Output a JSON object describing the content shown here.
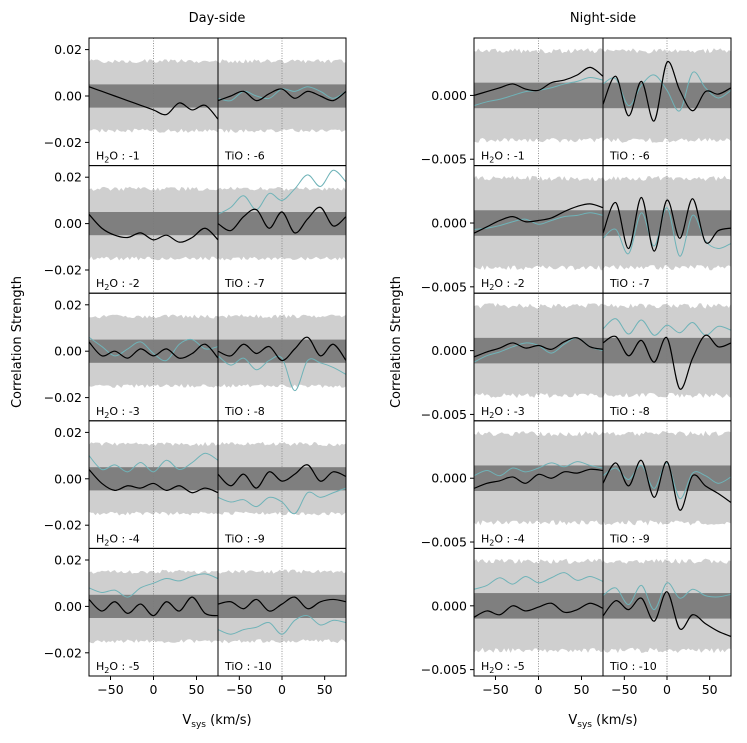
{
  "titles": {
    "left": "Day-side",
    "right": "Night-side"
  },
  "ylabel": "Correlation Strength",
  "xlabel": {
    "main": "V",
    "sub": "sys",
    "unit": " (km/s)"
  },
  "xticks": [
    "−50",
    "0",
    "50"
  ],
  "chart_data": {
    "type": "line",
    "xlim": [
      -75,
      75
    ],
    "panels": {
      "day": {
        "ylim": [
          -0.03,
          0.025
        ],
        "yticks": [
          {
            "v": 0.02,
            "label": "0.02"
          },
          {
            "v": 0.0,
            "label": "0.00"
          },
          {
            "v": -0.02,
            "label": "−0.02"
          }
        ],
        "inner_band": 0.005,
        "outer_band": 0.015
      },
      "night": {
        "ylim": [
          -0.0055,
          0.0045
        ],
        "yticks": [
          {
            "v": 0.0,
            "label": "0.000"
          },
          {
            "v": -0.005,
            "label": "−0.005"
          }
        ],
        "inner_band": 0.001,
        "outer_band": 0.0035
      }
    },
    "day_rows": [
      {
        "h2o": {
          "label": "-1",
          "black": [
            0.004,
            0.002,
            0.0,
            -0.002,
            -0.004,
            -0.006,
            -0.008,
            -0.003,
            -0.006,
            -0.004,
            -0.01
          ]
        },
        "tio": {
          "label": "-6",
          "black": [
            -0.002,
            0.0,
            0.002,
            -0.002,
            0.001,
            0.003,
            -0.001,
            0.002,
            0.0,
            -0.002,
            0.002
          ],
          "teal": [
            -0.001,
            -0.002,
            0.002,
            0.0,
            -0.001,
            0.003,
            0.002,
            0.004,
            0.002,
            -0.001,
            0.002
          ]
        }
      },
      {
        "h2o": {
          "label": "-2",
          "black": [
            0.004,
            -0.002,
            -0.005,
            -0.006,
            -0.004,
            -0.007,
            -0.005,
            -0.008,
            -0.006,
            -0.002,
            -0.007
          ]
        },
        "tio": {
          "label": "-7",
          "black": [
            0.0,
            -0.003,
            0.003,
            0.006,
            -0.002,
            0.005,
            -0.004,
            0.002,
            0.007,
            -0.001,
            0.003
          ],
          "teal": [
            0.004,
            0.007,
            0.012,
            0.006,
            0.013,
            0.01,
            0.015,
            0.021,
            0.016,
            0.023,
            0.018
          ]
        }
      },
      {
        "h2o": {
          "label": "-3",
          "black": [
            0.004,
            -0.002,
            0.0,
            -0.003,
            0.001,
            -0.002,
            0.001,
            -0.003,
            -0.001,
            0.003,
            -0.003
          ],
          "teal": [
            0.006,
            0.002,
            -0.002,
            0.001,
            0.004,
            -0.001,
            -0.004,
            0.003,
            0.005,
            0.001,
            0.002
          ]
        },
        "tio": {
          "label": "-8",
          "black": [
            0.0,
            -0.002,
            0.003,
            -0.001,
            0.002,
            -0.004,
            0.001,
            0.006,
            -0.002,
            0.003,
            -0.004
          ],
          "teal": [
            -0.002,
            -0.006,
            -0.003,
            -0.008,
            -0.004,
            -0.003,
            -0.017,
            -0.004,
            -0.005,
            -0.007,
            -0.01
          ]
        }
      },
      {
        "h2o": {
          "label": "-4",
          "black": [
            0.004,
            -0.002,
            -0.005,
            -0.003,
            -0.004,
            -0.002,
            -0.005,
            -0.003,
            -0.006,
            -0.004,
            -0.006
          ],
          "teal": [
            0.01,
            0.004,
            0.006,
            0.003,
            0.007,
            0.003,
            0.008,
            0.004,
            0.007,
            0.011,
            0.008
          ]
        },
        "tio": {
          "label": "-9",
          "black": [
            0.002,
            -0.003,
            0.002,
            -0.004,
            0.003,
            -0.001,
            0.002,
            0.006,
            -0.001,
            0.003,
            0.001
          ],
          "teal": [
            -0.008,
            -0.01,
            -0.009,
            -0.012,
            -0.008,
            -0.01,
            -0.015,
            -0.006,
            -0.008,
            -0.006,
            -0.004
          ]
        }
      },
      {
        "h2o": {
          "label": "-5",
          "black": [
            0.003,
            -0.002,
            0.002,
            -0.003,
            0.001,
            -0.004,
            0.002,
            -0.002,
            0.004,
            -0.003,
            -0.004
          ],
          "teal": [
            0.008,
            0.006,
            0.007,
            0.004,
            0.008,
            0.01,
            0.012,
            0.011,
            0.013,
            0.014,
            0.012
          ]
        },
        "tio": {
          "label": "-10",
          "black": [
            0.001,
            0.002,
            -0.001,
            0.003,
            -0.002,
            0.001,
            0.004,
            -0.001,
            0.002,
            0.003,
            0.002
          ],
          "teal": [
            -0.01,
            -0.012,
            -0.01,
            -0.009,
            -0.007,
            -0.012,
            -0.006,
            -0.004,
            -0.008,
            -0.006,
            -0.007
          ]
        }
      }
    ],
    "night_rows": [
      {
        "h2o": {
          "label": "-1",
          "black": [
            0.0,
            0.0003,
            0.0006,
            0.0009,
            0.0005,
            0.0004,
            0.001,
            0.0012,
            0.0016,
            0.0022,
            0.0015
          ],
          "teal": [
            -0.0008,
            -0.0005,
            -0.0003,
            0.0,
            0.0003,
            0.0004,
            0.0006,
            0.0009,
            0.0011,
            0.0014,
            0.0012
          ]
        },
        "tio": {
          "label": "-6",
          "black": [
            -0.0007,
            0.0015,
            -0.0016,
            0.0011,
            -0.002,
            0.0026,
            0.0004,
            -0.0012,
            0.0003,
            0.0001,
            0.0006
          ],
          "teal": [
            0.0009,
            0.0013,
            -0.0008,
            0.0008,
            0.0016,
            0.0004,
            -0.0012,
            0.0018,
            0.0006,
            -0.0002,
            0.0004
          ]
        }
      },
      {
        "h2o": {
          "label": "-2",
          "black": [
            -0.0008,
            -0.0003,
            0.0002,
            0.0005,
            0.0001,
            0.0002,
            0.0004,
            0.0009,
            0.0013,
            0.0015,
            0.0012
          ],
          "teal": [
            -0.0005,
            -0.0004,
            -0.0002,
            0.0001,
            0.0003,
            -0.0001,
            0.0002,
            0.0005,
            0.0006,
            0.0008,
            0.0006
          ]
        },
        "tio": {
          "label": "-7",
          "black": [
            -0.0008,
            0.0016,
            -0.002,
            0.002,
            -0.0022,
            0.0018,
            -0.0012,
            0.0019,
            -0.0015,
            -0.0006,
            -0.0004
          ],
          "teal": [
            -0.0012,
            -0.0005,
            -0.0024,
            0.0008,
            -0.0018,
            0.0012,
            -0.0026,
            0.0006,
            -0.0014,
            -0.002,
            -0.0016
          ]
        }
      },
      {
        "h2o": {
          "label": "-3",
          "black": [
            -0.0005,
            -0.0001,
            0.0002,
            0.0006,
            0.0002,
            0.0004,
            0.0001,
            0.0007,
            0.001,
            0.0003,
            0.0001
          ],
          "teal": [
            -0.0009,
            -0.0004,
            -0.0001,
            0.0003,
            0.0006,
            0.0004,
            -0.0002,
            0.0005,
            0.001,
            0.0003,
            0.0
          ]
        },
        "tio": {
          "label": "-8",
          "black": [
            0.0006,
            0.0011,
            -0.0004,
            0.0008,
            -0.0009,
            0.001,
            -0.003,
            -0.0006,
            0.0012,
            0.0003,
            0.0006
          ],
          "teal": [
            0.0017,
            0.0025,
            0.0013,
            0.0024,
            0.0012,
            0.002,
            0.0014,
            0.0022,
            0.0012,
            0.0019,
            0.0016
          ]
        }
      },
      {
        "h2o": {
          "label": "-4",
          "black": [
            -0.0008,
            -0.0004,
            -0.0002,
            0.0001,
            -0.0004,
            0.0003,
            0.0,
            0.0005,
            0.0004,
            0.0007,
            0.0006
          ],
          "teal": [
            0.0002,
            0.0006,
            0.0002,
            0.0008,
            0.0005,
            0.0008,
            0.0012,
            0.0009,
            0.0013,
            0.001,
            0.0008
          ]
        },
        "tio": {
          "label": "-9",
          "black": [
            -0.0004,
            0.0012,
            -0.0006,
            0.0014,
            -0.0015,
            0.0013,
            -0.0025,
            0.0002,
            -0.0006,
            -0.0012,
            -0.0019
          ],
          "teal": [
            0.0002,
            0.0008,
            -0.0001,
            0.001,
            -0.0008,
            0.0012,
            -0.0016,
            0.0004,
            0.0002,
            -0.0004,
            0.0001
          ]
        }
      },
      {
        "h2o": {
          "label": "-5",
          "black": [
            -0.0009,
            -0.0004,
            -0.0007,
            0.0,
            -0.0004,
            -0.0001,
            0.0002,
            -0.0005,
            -0.0003,
            0.0002,
            -0.0002
          ],
          "teal": [
            0.0013,
            0.0016,
            0.0022,
            0.0017,
            0.0023,
            0.0018,
            0.0022,
            0.0026,
            0.002,
            0.0023,
            0.0019
          ]
        },
        "tio": {
          "label": "-10",
          "black": [
            -0.0008,
            0.0004,
            -0.0003,
            0.0006,
            -0.0012,
            0.0011,
            -0.0018,
            -0.0007,
            -0.0014,
            -0.002,
            -0.0024
          ],
          "teal": [
            0.0008,
            0.0014,
            0.0001,
            0.0016,
            -0.0003,
            0.0018,
            0.0006,
            0.0013,
            0.0008,
            0.0007,
            0.0009
          ]
        }
      }
    ]
  },
  "colors": {
    "inner_band": "#7f7f7f",
    "outer_band": "#cfcfcf",
    "black_line": "#000000",
    "teal_line": "#6fb3b8",
    "zero_line": "#7a7a7a"
  }
}
